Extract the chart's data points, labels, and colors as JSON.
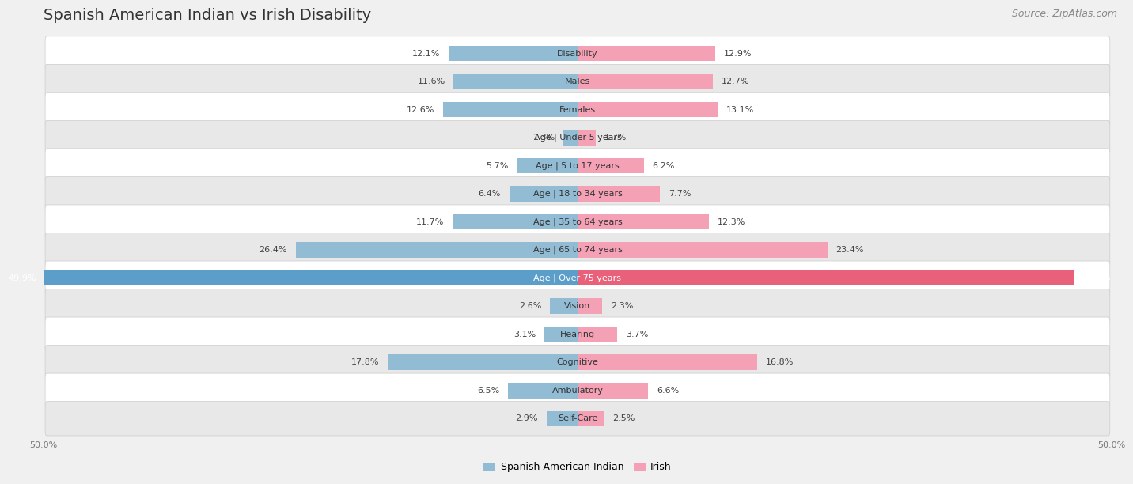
{
  "title": "Spanish American Indian vs Irish Disability",
  "source": "Source: ZipAtlas.com",
  "categories": [
    "Disability",
    "Males",
    "Females",
    "Age | Under 5 years",
    "Age | 5 to 17 years",
    "Age | 18 to 34 years",
    "Age | 35 to 64 years",
    "Age | 65 to 74 years",
    "Age | Over 75 years",
    "Vision",
    "Hearing",
    "Cognitive",
    "Ambulatory",
    "Self-Care"
  ],
  "left_values": [
    12.1,
    11.6,
    12.6,
    1.3,
    5.7,
    6.4,
    11.7,
    26.4,
    49.9,
    2.6,
    3.1,
    17.8,
    6.5,
    2.9
  ],
  "right_values": [
    12.9,
    12.7,
    13.1,
    1.7,
    6.2,
    7.7,
    12.3,
    23.4,
    46.5,
    2.3,
    3.7,
    16.8,
    6.6,
    2.5
  ],
  "left_color": "#92bcd4",
  "right_color": "#f4a0b5",
  "left_color_highlight": "#5b9ec9",
  "right_color_highlight": "#e8607a",
  "max_val": 50.0,
  "bg_color": "#f0f0f0",
  "row_color_even": "#ffffff",
  "row_color_odd": "#e8e8e8",
  "left_label": "Spanish American Indian",
  "right_label": "Irish",
  "title_fontsize": 14,
  "source_fontsize": 9,
  "cat_fontsize": 8,
  "val_fontsize": 8,
  "bar_height": 0.55
}
